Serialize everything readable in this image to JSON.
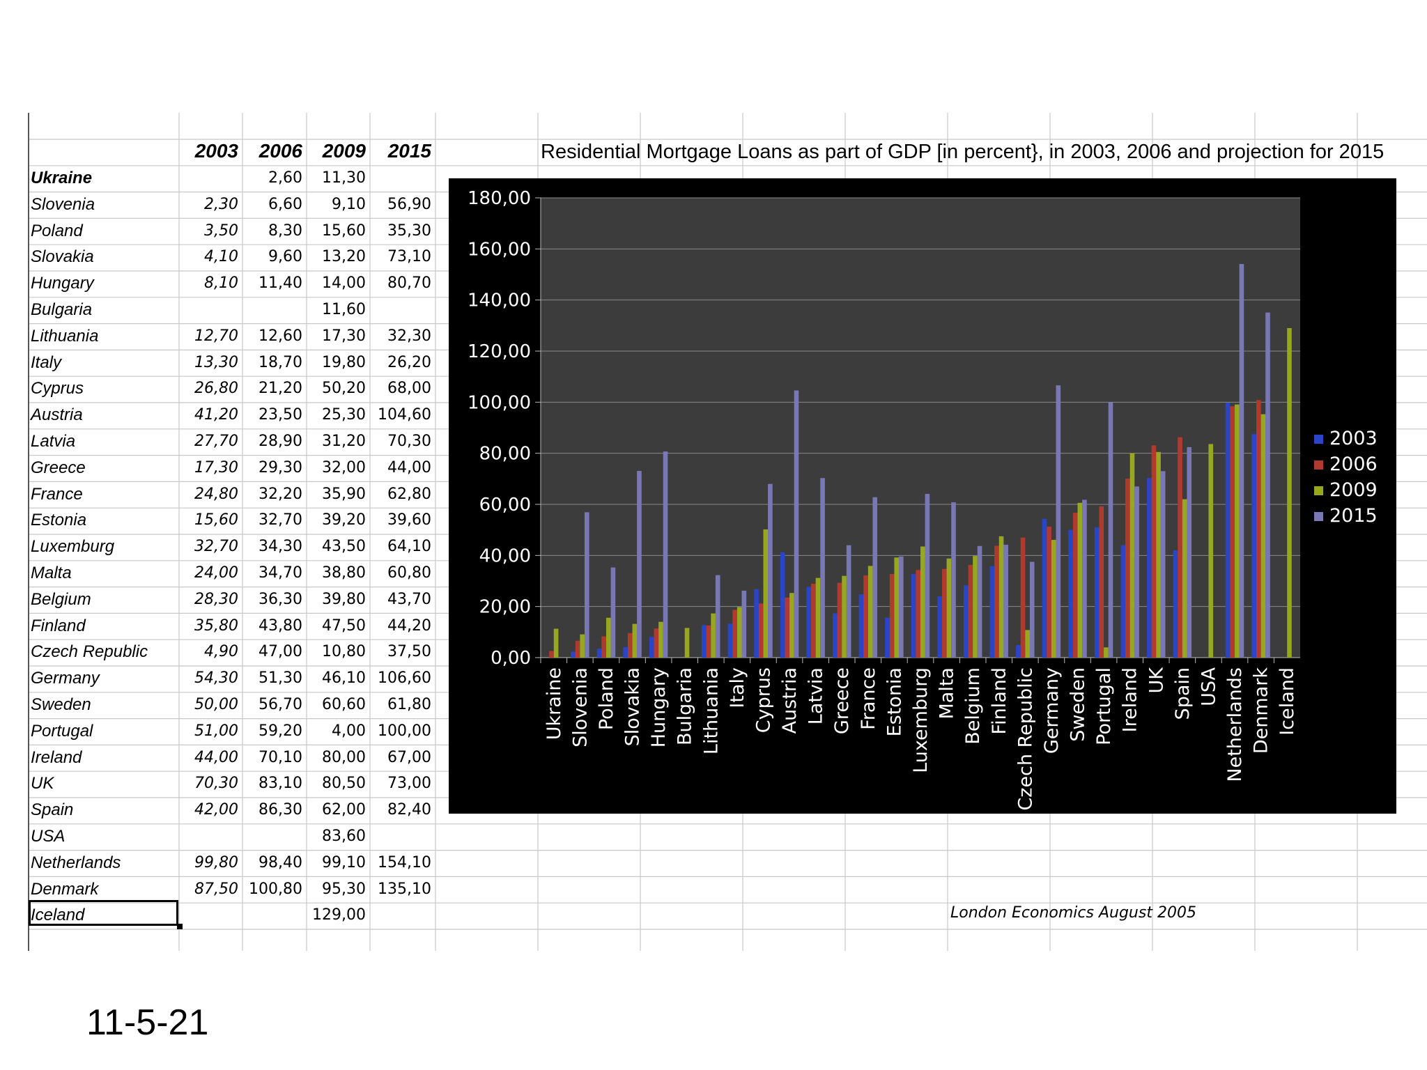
{
  "slide": {
    "date": "11-5-21"
  },
  "table": {
    "headers": [
      "2003",
      "2006",
      "2009",
      "2015"
    ],
    "rows": [
      {
        "country": "Ukraine",
        "v2003": "",
        "v2006": "2,60",
        "v2009": "11,30",
        "v2015": ""
      },
      {
        "country": "Slovenia",
        "v2003": "2,30",
        "v2006": "6,60",
        "v2009": "9,10",
        "v2015": "56,90"
      },
      {
        "country": "Poland",
        "v2003": "3,50",
        "v2006": "8,30",
        "v2009": "15,60",
        "v2015": "35,30"
      },
      {
        "country": "Slovakia",
        "v2003": "4,10",
        "v2006": "9,60",
        "v2009": "13,20",
        "v2015": "73,10"
      },
      {
        "country": "Hungary",
        "v2003": "8,10",
        "v2006": "11,40",
        "v2009": "14,00",
        "v2015": "80,70"
      },
      {
        "country": "Bulgaria",
        "v2003": "",
        "v2006": "",
        "v2009": "11,60",
        "v2015": ""
      },
      {
        "country": "Lithuania",
        "v2003": "12,70",
        "v2006": "12,60",
        "v2009": "17,30",
        "v2015": "32,30"
      },
      {
        "country": "Italy",
        "v2003": "13,30",
        "v2006": "18,70",
        "v2009": "19,80",
        "v2015": "26,20"
      },
      {
        "country": "Cyprus",
        "v2003": "26,80",
        "v2006": "21,20",
        "v2009": "50,20",
        "v2015": "68,00"
      },
      {
        "country": "Austria",
        "v2003": "41,20",
        "v2006": "23,50",
        "v2009": "25,30",
        "v2015": "104,60"
      },
      {
        "country": "Latvia",
        "v2003": "27,70",
        "v2006": "28,90",
        "v2009": "31,20",
        "v2015": "70,30"
      },
      {
        "country": "Greece",
        "v2003": "17,30",
        "v2006": "29,30",
        "v2009": "32,00",
        "v2015": "44,00"
      },
      {
        "country": "France",
        "v2003": "24,80",
        "v2006": "32,20",
        "v2009": "35,90",
        "v2015": "62,80"
      },
      {
        "country": "Estonia",
        "v2003": "15,60",
        "v2006": "32,70",
        "v2009": "39,20",
        "v2015": "39,60"
      },
      {
        "country": "Luxemburg",
        "v2003": "32,70",
        "v2006": "34,30",
        "v2009": "43,50",
        "v2015": "64,10"
      },
      {
        "country": "Malta",
        "v2003": "24,00",
        "v2006": "34,70",
        "v2009": "38,80",
        "v2015": "60,80"
      },
      {
        "country": "Belgium",
        "v2003": "28,30",
        "v2006": "36,30",
        "v2009": "39,80",
        "v2015": "43,70"
      },
      {
        "country": "Finland",
        "v2003": "35,80",
        "v2006": "43,80",
        "v2009": "47,50",
        "v2015": "44,20"
      },
      {
        "country": "Czech Republic",
        "v2003": "4,90",
        "v2006": "47,00",
        "v2009": "10,80",
        "v2015": "37,50"
      },
      {
        "country": "Germany",
        "v2003": "54,30",
        "v2006": "51,30",
        "v2009": "46,10",
        "v2015": "106,60"
      },
      {
        "country": "Sweden",
        "v2003": "50,00",
        "v2006": "56,70",
        "v2009": "60,60",
        "v2015": "61,80"
      },
      {
        "country": "Portugal",
        "v2003": "51,00",
        "v2006": "59,20",
        "v2009": "4,00",
        "v2015": "100,00"
      },
      {
        "country": "Ireland",
        "v2003": "44,00",
        "v2006": "70,10",
        "v2009": "80,00",
        "v2015": "67,00"
      },
      {
        "country": "UK",
        "v2003": "70,30",
        "v2006": "83,10",
        "v2009": "80,50",
        "v2015": "73,00"
      },
      {
        "country": "Spain",
        "v2003": "42,00",
        "v2006": "86,30",
        "v2009": "62,00",
        "v2015": "82,40"
      },
      {
        "country": "USA",
        "v2003": "",
        "v2006": "",
        "v2009": "83,60",
        "v2015": ""
      },
      {
        "country": "Netherlands",
        "v2003": "99,80",
        "v2006": "98,40",
        "v2009": "99,10",
        "v2015": "154,10"
      },
      {
        "country": "Denmark",
        "v2003": "87,50",
        "v2006": "100,80",
        "v2009": "95,30",
        "v2015": "135,10"
      },
      {
        "country": "Iceland",
        "v2003": "",
        "v2006": "",
        "v2009": "129,00",
        "v2015": ""
      }
    ]
  },
  "source_note": "London Economics August 2005",
  "chart_data": {
    "type": "bar",
    "title": "Residential Mortgage Loans as part of GDP [in percent}, in 2003, 2006 and projection for 2015",
    "xlabel": "",
    "ylabel": "",
    "ylim": [
      0,
      180
    ],
    "yticks": [
      "0,00",
      "20,00",
      "40,00",
      "60,00",
      "80,00",
      "100,00",
      "120,00",
      "140,00",
      "160,00",
      "180,00"
    ],
    "grid": true,
    "legend_position": "right",
    "categories": [
      "Ukraine",
      "Slovenia",
      "Poland",
      "Slovakia",
      "Hungary",
      "Bulgaria",
      "Lithuania",
      "Italy",
      "Cyprus",
      "Austria",
      "Latvia",
      "Greece",
      "France",
      "Estonia",
      "Luxemburg",
      "Malta",
      "Belgium",
      "Finland",
      "Czech Republic",
      "Germany",
      "Sweden",
      "Portugal",
      "Ireland",
      "UK",
      "Spain",
      "USA",
      "Netherlands",
      "Denmark",
      "Iceland"
    ],
    "series": [
      {
        "name": "2003",
        "color": "#2a46c8",
        "values": [
          null,
          2.3,
          3.5,
          4.1,
          8.1,
          null,
          12.7,
          13.3,
          26.8,
          41.2,
          27.7,
          17.3,
          24.8,
          15.6,
          32.7,
          24.0,
          28.3,
          35.8,
          4.9,
          54.3,
          50.0,
          51.0,
          44.0,
          70.3,
          42.0,
          null,
          99.8,
          87.5,
          null
        ]
      },
      {
        "name": "2006",
        "color": "#b03a2e",
        "values": [
          2.6,
          6.6,
          8.3,
          9.6,
          11.4,
          null,
          12.6,
          18.7,
          21.2,
          23.5,
          28.9,
          29.3,
          32.2,
          32.7,
          34.3,
          34.7,
          36.3,
          43.8,
          47.0,
          51.3,
          56.7,
          59.2,
          70.1,
          83.1,
          86.3,
          null,
          98.4,
          100.8,
          null
        ]
      },
      {
        "name": "2009",
        "color": "#98a81e",
        "values": [
          11.3,
          9.1,
          15.6,
          13.2,
          14.0,
          11.6,
          17.3,
          19.8,
          50.2,
          25.3,
          31.2,
          32.0,
          35.9,
          39.2,
          43.5,
          38.8,
          39.8,
          47.5,
          10.8,
          46.1,
          60.6,
          4.0,
          80.0,
          80.5,
          62.0,
          83.6,
          99.1,
          95.3,
          129.0
        ]
      },
      {
        "name": "2015",
        "color": "#7a78b4",
        "values": [
          null,
          56.9,
          35.3,
          73.1,
          80.7,
          null,
          32.3,
          26.2,
          68.0,
          104.6,
          70.3,
          44.0,
          62.8,
          39.6,
          64.1,
          60.8,
          43.7,
          44.2,
          37.5,
          106.6,
          61.8,
          100.0,
          67.0,
          73.0,
          82.4,
          null,
          154.1,
          135.1,
          null
        ]
      }
    ]
  }
}
